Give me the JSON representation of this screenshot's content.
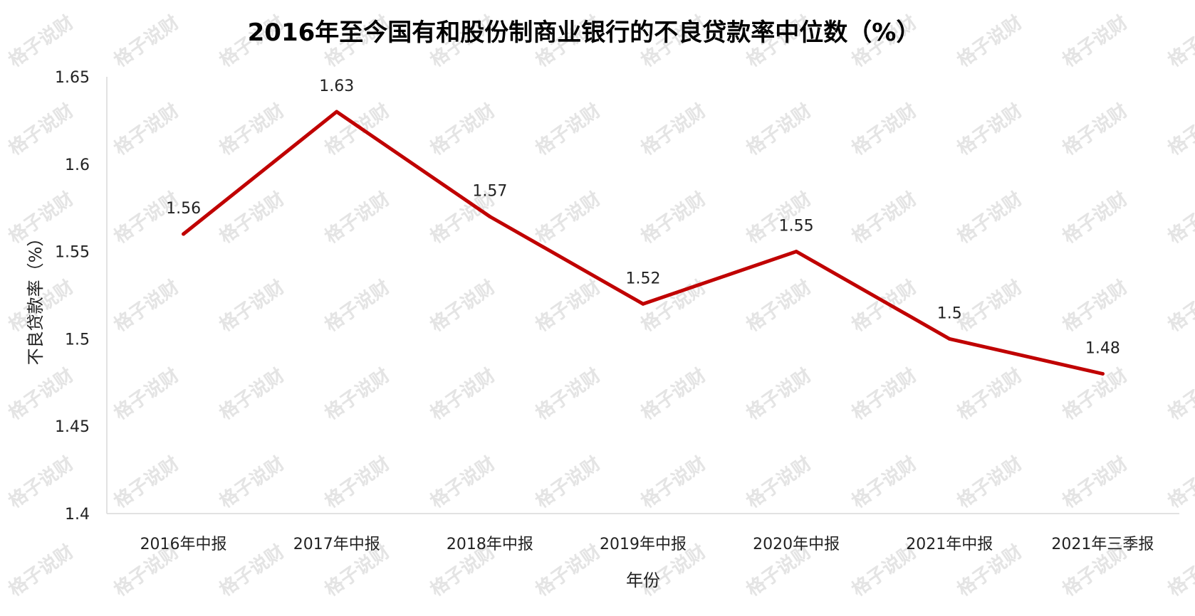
{
  "chart_data": {
    "type": "line",
    "title": "2016年至今国有和股份制商业银行的不良贷款率中位数（%）",
    "xlabel": "年份",
    "ylabel": "不良贷款率（%）",
    "categories": [
      "2016年中报",
      "2017年中报",
      "2018年中报",
      "2019年中报",
      "2020年中报",
      "2021年中报",
      "2021年三季报"
    ],
    "series": [
      {
        "values": [
          1.56,
          1.63,
          1.57,
          1.52,
          1.55,
          1.5,
          1.48
        ],
        "color": "#c00000"
      }
    ],
    "data_labels": [
      "1.56",
      "1.63",
      "1.57",
      "1.52",
      "1.55",
      "1.5",
      "1.48"
    ],
    "ylim": [
      1.4,
      1.65
    ],
    "yticks": [
      "1.4",
      "1.45",
      "1.5",
      "1.55",
      "1.6",
      "1.65"
    ],
    "grid": false,
    "legend": "none",
    "watermark": "格子说财"
  }
}
